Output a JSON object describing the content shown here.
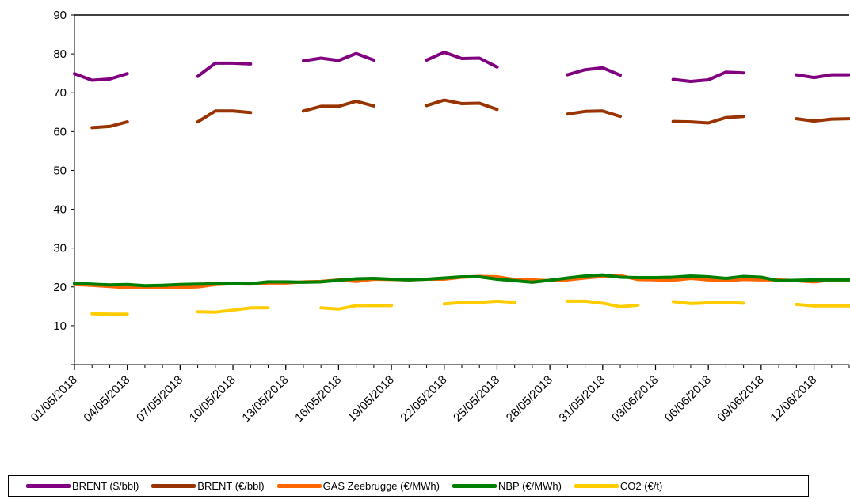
{
  "chart_data": {
    "type": "line",
    "ylim": [
      0,
      90
    ],
    "y_ticks": [
      "90",
      "80",
      "70",
      "60",
      "50",
      "40",
      "30",
      "20",
      "10"
    ],
    "x_tick_labels": [
      "01/05/2018",
      "04/05/2018",
      "07/05/2018",
      "10/05/2018",
      "13/05/2018",
      "16/05/2018",
      "19/05/2018",
      "22/05/2018",
      "25/05/2018",
      "28/05/2018",
      "31/05/2018",
      "03/06/2018",
      "06/06/2018",
      "09/06/2018",
      "12/06/2018"
    ],
    "x_start": "01/05/2018",
    "x_end": "14/06/2018",
    "grid": false,
    "legend_position": "bottom",
    "series": [
      {
        "name": "BRENT ($/bbl)",
        "color": "#800080",
        "points": [
          [
            "01/05/2018",
            74.9
          ],
          [
            "02/05/2018",
            73.2
          ],
          [
            "03/05/2018",
            73.5
          ],
          [
            "04/05/2018",
            74.9
          ],
          [
            "08/05/2018",
            74.2
          ],
          [
            "09/05/2018",
            77.6
          ],
          [
            "10/05/2018",
            77.6
          ],
          [
            "11/05/2018",
            77.4
          ],
          [
            "14/05/2018",
            78.2
          ],
          [
            "15/05/2018",
            78.9
          ],
          [
            "16/05/2018",
            78.3
          ],
          [
            "17/05/2018",
            80.1
          ],
          [
            "18/05/2018",
            78.4
          ],
          [
            "21/05/2018",
            78.4
          ],
          [
            "22/05/2018",
            80.4
          ],
          [
            "23/05/2018",
            78.8
          ],
          [
            "24/05/2018",
            78.9
          ],
          [
            "25/05/2018",
            76.6
          ],
          [
            "29/05/2018",
            74.6
          ],
          [
            "30/05/2018",
            75.9
          ],
          [
            "31/05/2018",
            76.4
          ],
          [
            "01/06/2018",
            74.5
          ],
          [
            "04/06/2018",
            73.4
          ],
          [
            "05/06/2018",
            72.9
          ],
          [
            "06/06/2018",
            73.3
          ],
          [
            "07/06/2018",
            75.3
          ],
          [
            "08/06/2018",
            75.1
          ],
          [
            "11/06/2018",
            74.6
          ],
          [
            "12/06/2018",
            73.9
          ],
          [
            "13/06/2018",
            74.6
          ],
          [
            "14/06/2018",
            74.6
          ]
        ]
      },
      {
        "name": "BRENT (€/bbl)",
        "color": "#993300",
        "points": [
          [
            "02/05/2018",
            61.0
          ],
          [
            "03/05/2018",
            61.3
          ],
          [
            "04/05/2018",
            62.5
          ],
          [
            "08/05/2018",
            62.5
          ],
          [
            "09/05/2018",
            65.3
          ],
          [
            "10/05/2018",
            65.3
          ],
          [
            "11/05/2018",
            64.9
          ],
          [
            "14/05/2018",
            65.3
          ],
          [
            "15/05/2018",
            66.5
          ],
          [
            "16/05/2018",
            66.5
          ],
          [
            "17/05/2018",
            67.8
          ],
          [
            "18/05/2018",
            66.6
          ],
          [
            "21/05/2018",
            66.7
          ],
          [
            "22/05/2018",
            68.1
          ],
          [
            "23/05/2018",
            67.2
          ],
          [
            "24/05/2018",
            67.3
          ],
          [
            "25/05/2018",
            65.7
          ],
          [
            "29/05/2018",
            64.5
          ],
          [
            "30/05/2018",
            65.2
          ],
          [
            "31/05/2018",
            65.3
          ],
          [
            "01/06/2018",
            63.9
          ],
          [
            "04/06/2018",
            62.6
          ],
          [
            "05/06/2018",
            62.5
          ],
          [
            "06/06/2018",
            62.2
          ],
          [
            "07/06/2018",
            63.6
          ],
          [
            "08/06/2018",
            63.9
          ],
          [
            "11/06/2018",
            63.3
          ],
          [
            "12/06/2018",
            62.7
          ],
          [
            "13/06/2018",
            63.2
          ],
          [
            "14/06/2018",
            63.3
          ]
        ]
      },
      {
        "name": "GAS Zeebrugge (€/MWh)",
        "color": "#ff6600",
        "points": [
          [
            "01/05/2018",
            20.6
          ],
          [
            "02/05/2018",
            20.4
          ],
          [
            "03/05/2018",
            20.1
          ],
          [
            "04/05/2018",
            19.8
          ],
          [
            "05/05/2018",
            19.8
          ],
          [
            "06/05/2018",
            19.9
          ],
          [
            "07/05/2018",
            19.9
          ],
          [
            "08/05/2018",
            20.0
          ],
          [
            "09/05/2018",
            20.6
          ],
          [
            "10/05/2018",
            20.8
          ],
          [
            "11/05/2018",
            20.7
          ],
          [
            "12/05/2018",
            21.0
          ],
          [
            "13/05/2018",
            21.0
          ],
          [
            "14/05/2018",
            21.3
          ],
          [
            "15/05/2018",
            21.4
          ],
          [
            "16/05/2018",
            21.8
          ],
          [
            "17/05/2018",
            21.4
          ],
          [
            "18/05/2018",
            22.0
          ],
          [
            "19/05/2018",
            21.9
          ],
          [
            "20/05/2018",
            21.8
          ],
          [
            "21/05/2018",
            22.0
          ],
          [
            "22/05/2018",
            22.0
          ],
          [
            "23/05/2018",
            22.5
          ],
          [
            "24/05/2018",
            22.7
          ],
          [
            "25/05/2018",
            22.6
          ],
          [
            "26/05/2018",
            21.9
          ],
          [
            "27/05/2018",
            21.8
          ],
          [
            "28/05/2018",
            21.6
          ],
          [
            "29/05/2018",
            21.8
          ],
          [
            "30/05/2018",
            22.3
          ],
          [
            "31/05/2018",
            22.7
          ],
          [
            "01/06/2018",
            22.9
          ],
          [
            "02/06/2018",
            21.9
          ],
          [
            "03/06/2018",
            21.8
          ],
          [
            "04/06/2018",
            21.7
          ],
          [
            "05/06/2018",
            22.2
          ],
          [
            "06/06/2018",
            21.8
          ],
          [
            "07/06/2018",
            21.6
          ],
          [
            "08/06/2018",
            21.9
          ],
          [
            "09/06/2018",
            21.8
          ],
          [
            "10/06/2018",
            21.8
          ],
          [
            "11/06/2018",
            21.6
          ],
          [
            "12/06/2018",
            21.3
          ],
          [
            "13/06/2018",
            21.8
          ],
          [
            "14/06/2018",
            21.8
          ]
        ]
      },
      {
        "name": "NBP (€/MWh)",
        "color": "#008000",
        "points": [
          [
            "01/05/2018",
            20.9
          ],
          [
            "02/05/2018",
            20.7
          ],
          [
            "03/05/2018",
            20.5
          ],
          [
            "04/05/2018",
            20.6
          ],
          [
            "05/05/2018",
            20.3
          ],
          [
            "06/05/2018",
            20.4
          ],
          [
            "07/05/2018",
            20.6
          ],
          [
            "08/05/2018",
            20.7
          ],
          [
            "09/05/2018",
            20.8
          ],
          [
            "10/05/2018",
            20.9
          ],
          [
            "11/05/2018",
            20.8
          ],
          [
            "12/05/2018",
            21.3
          ],
          [
            "13/05/2018",
            21.3
          ],
          [
            "14/05/2018",
            21.2
          ],
          [
            "15/05/2018",
            21.3
          ],
          [
            "16/05/2018",
            21.7
          ],
          [
            "17/05/2018",
            22.1
          ],
          [
            "18/05/2018",
            22.2
          ],
          [
            "19/05/2018",
            22.0
          ],
          [
            "20/05/2018",
            21.8
          ],
          [
            "21/05/2018",
            22.0
          ],
          [
            "22/05/2018",
            22.3
          ],
          [
            "23/05/2018",
            22.6
          ],
          [
            "24/05/2018",
            22.6
          ],
          [
            "25/05/2018",
            22.0
          ],
          [
            "26/05/2018",
            21.6
          ],
          [
            "27/05/2018",
            21.2
          ],
          [
            "28/05/2018",
            21.7
          ],
          [
            "29/05/2018",
            22.3
          ],
          [
            "30/05/2018",
            22.8
          ],
          [
            "31/05/2018",
            23.1
          ],
          [
            "01/06/2018",
            22.5
          ],
          [
            "02/06/2018",
            22.4
          ],
          [
            "03/06/2018",
            22.4
          ],
          [
            "04/06/2018",
            22.5
          ],
          [
            "05/06/2018",
            22.8
          ],
          [
            "06/06/2018",
            22.6
          ],
          [
            "07/06/2018",
            22.2
          ],
          [
            "08/06/2018",
            22.7
          ],
          [
            "09/06/2018",
            22.5
          ],
          [
            "10/06/2018",
            21.6
          ],
          [
            "11/06/2018",
            21.7
          ],
          [
            "12/06/2018",
            21.8
          ],
          [
            "13/06/2018",
            21.8
          ],
          [
            "14/06/2018",
            21.8
          ]
        ]
      },
      {
        "name": "CO2 (€/t)",
        "color": "#ffcc00",
        "points": [
          [
            "02/05/2018",
            13.1
          ],
          [
            "03/05/2018",
            13.0
          ],
          [
            "04/05/2018",
            13.0
          ],
          [
            "08/05/2018",
            13.6
          ],
          [
            "09/05/2018",
            13.5
          ],
          [
            "10/05/2018",
            14.0
          ],
          [
            "11/05/2018",
            14.6
          ],
          [
            "12/05/2018",
            14.6
          ],
          [
            "15/05/2018",
            14.6
          ],
          [
            "16/05/2018",
            14.3
          ],
          [
            "17/05/2018",
            15.2
          ],
          [
            "18/05/2018",
            15.2
          ],
          [
            "19/05/2018",
            15.2
          ],
          [
            "22/05/2018",
            15.6
          ],
          [
            "23/05/2018",
            16.0
          ],
          [
            "24/05/2018",
            16.0
          ],
          [
            "25/05/2018",
            16.3
          ],
          [
            "26/05/2018",
            16.0
          ],
          [
            "29/05/2018",
            16.3
          ],
          [
            "30/05/2018",
            16.3
          ],
          [
            "31/05/2018",
            15.8
          ],
          [
            "01/06/2018",
            14.9
          ],
          [
            "02/06/2018",
            15.3
          ],
          [
            "04/06/2018",
            16.2
          ],
          [
            "05/06/2018",
            15.7
          ],
          [
            "06/06/2018",
            15.9
          ],
          [
            "07/06/2018",
            16.0
          ],
          [
            "08/06/2018",
            15.8
          ],
          [
            "11/06/2018",
            15.5
          ],
          [
            "12/06/2018",
            15.1
          ],
          [
            "13/06/2018",
            15.1
          ],
          [
            "14/06/2018",
            15.1
          ]
        ]
      }
    ]
  }
}
